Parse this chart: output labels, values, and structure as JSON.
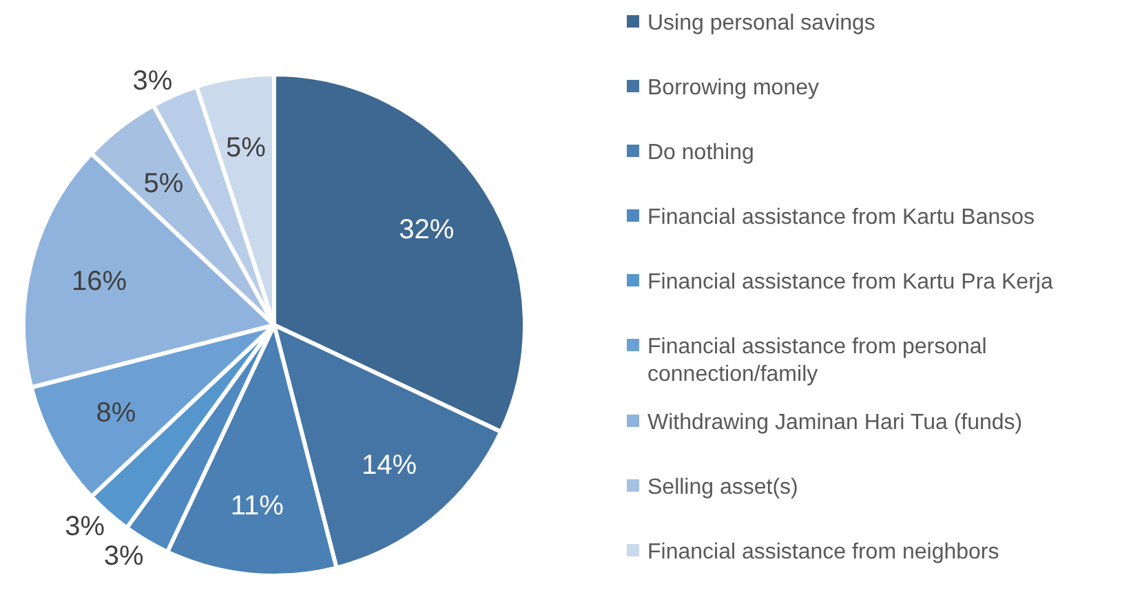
{
  "chart_data": {
    "type": "pie",
    "categories": [
      "Using personal savings",
      "Borrowing money",
      "Do nothing",
      "Financial assistance from Kartu Bansos",
      "Financial assistance from Kartu Pra Kerja",
      "Financial assistance from personal connection/family",
      "Withdrawing Jaminan Hari Tua (funds)",
      "Selling asset(s)",
      null,
      "Financial assistance from neighbors"
    ],
    "values": [
      32,
      14,
      11,
      3,
      3,
      8,
      16,
      5,
      3,
      5
    ],
    "colors": [
      "#3d6891",
      "#4575a5",
      "#4a80b4",
      "#4f89c0",
      "#5596cd",
      "#6ca0d5",
      "#8fb3dc",
      "#a6c0e2",
      "#b9cde8",
      "#cbd9ec"
    ],
    "value_labels": [
      "32%",
      "14%",
      "11%",
      "3%",
      "3%",
      "8%",
      "16%",
      "5%",
      "3%",
      "5%"
    ],
    "legend": "right"
  }
}
